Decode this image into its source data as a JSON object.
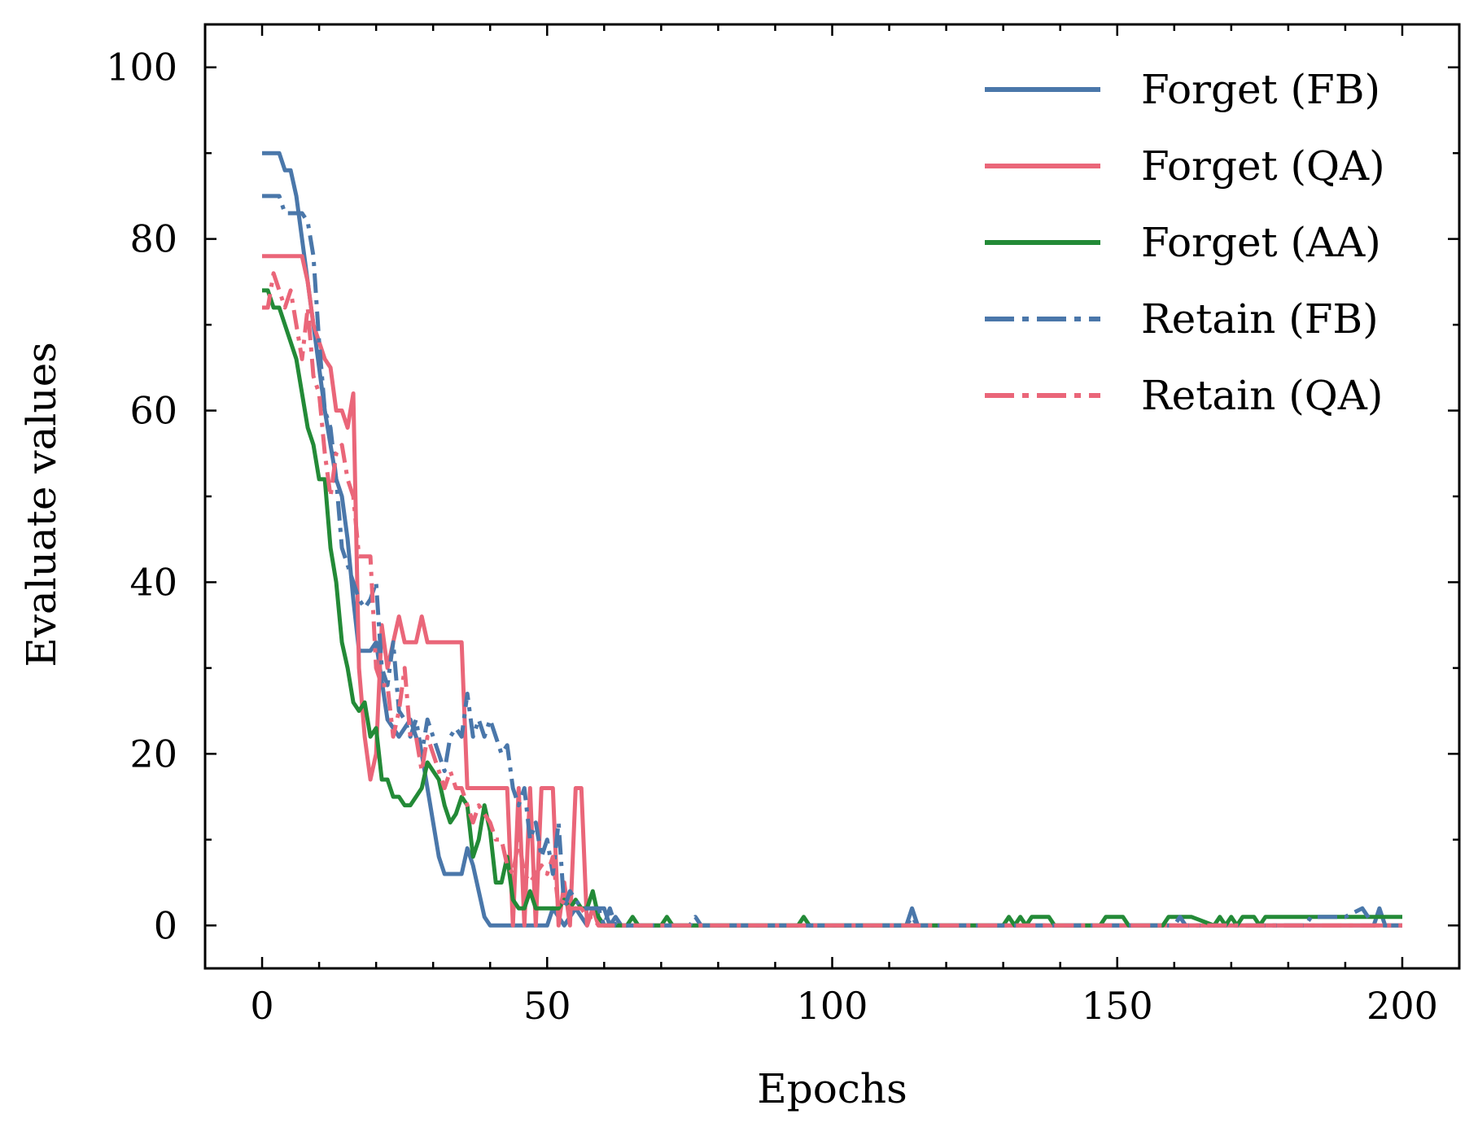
{
  "chart_data": {
    "type": "line",
    "title": "",
    "xlabel": "Epochs",
    "ylabel": "Evaluate values",
    "xlim": [
      -10,
      210
    ],
    "ylim": [
      -5,
      105
    ],
    "xticks": [
      0,
      50,
      100,
      150,
      200
    ],
    "yticks": [
      0,
      20,
      40,
      60,
      80,
      100
    ],
    "xtick_labels": [
      "0",
      "50",
      "100",
      "150",
      "200"
    ],
    "ytick_labels": [
      "0",
      "20",
      "40",
      "60",
      "80",
      "100"
    ],
    "x_minor_step": 10,
    "y_minor_step": 10,
    "grid": false,
    "legend_position": "top-right",
    "series": [
      {
        "name": "Forget (FB)",
        "color": "#4a77aa",
        "dash": "solid",
        "x": [
          0,
          1,
          2,
          3,
          4,
          5,
          6,
          7,
          8,
          9,
          10,
          11,
          12,
          13,
          14,
          15,
          16,
          17,
          18,
          19,
          20,
          22,
          24,
          26,
          28,
          30,
          31,
          32,
          33,
          34,
          35,
          36,
          37,
          38,
          39,
          40,
          50,
          51,
          52,
          53,
          54,
          55,
          56,
          57,
          58,
          59,
          60,
          61,
          62,
          63,
          80,
          113,
          114,
          115,
          180,
          190,
          195,
          196,
          197,
          200
        ],
        "y": [
          90,
          90,
          90,
          90,
          88,
          88,
          85,
          80,
          75,
          70,
          65,
          60,
          56,
          52,
          50,
          45,
          38,
          32,
          32,
          32,
          33,
          24,
          22,
          24,
          20,
          12,
          8,
          6,
          6,
          6,
          6,
          9,
          7,
          4,
          1,
          0,
          0,
          2,
          1,
          0,
          1,
          2,
          1,
          0,
          2,
          2,
          2,
          0,
          1,
          0,
          0,
          0,
          2,
          0,
          0,
          0,
          0,
          2,
          0,
          0
        ]
      },
      {
        "name": "Forget (QA)",
        "color": "#ea6679",
        "dash": "solid",
        "x": [
          0,
          7,
          8,
          9,
          10,
          11,
          12,
          13,
          14,
          15,
          16,
          17,
          18,
          19,
          20,
          21,
          22,
          23,
          24,
          25,
          26,
          27,
          28,
          29,
          30,
          34,
          35,
          36,
          37,
          38,
          40,
          41,
          42,
          43,
          44,
          45,
          46,
          47,
          48,
          49,
          50,
          51,
          52,
          53,
          54,
          55,
          56,
          57,
          58,
          59,
          60,
          200
        ],
        "y": [
          78,
          78,
          75,
          70,
          68,
          66,
          65,
          60,
          60,
          58,
          62,
          30,
          22,
          17,
          20,
          35,
          30,
          33,
          36,
          33,
          33,
          33,
          36,
          33,
          33,
          33,
          33,
          16,
          16,
          16,
          16,
          16,
          16,
          16,
          0,
          16,
          0,
          16,
          0,
          16,
          16,
          16,
          0,
          5,
          0,
          16,
          16,
          0,
          2,
          0,
          0,
          0
        ]
      },
      {
        "name": "Forget (AA)",
        "color": "#238a37",
        "dash": "solid",
        "x": [
          0,
          1,
          2,
          3,
          4,
          5,
          6,
          7,
          8,
          9,
          10,
          11,
          12,
          13,
          14,
          15,
          16,
          17,
          18,
          19,
          20,
          21,
          22,
          23,
          24,
          25,
          26,
          27,
          28,
          29,
          30,
          31,
          32,
          33,
          34,
          35,
          36,
          37,
          38,
          39,
          40,
          41,
          42,
          43,
          44,
          45,
          46,
          47,
          48,
          49,
          50,
          51,
          52,
          53,
          54,
          55,
          56,
          57,
          58,
          59,
          60,
          62,
          64,
          65,
          66,
          70,
          71,
          72,
          94,
          95,
          96,
          130,
          131,
          132,
          133,
          134,
          135,
          136,
          137,
          138,
          139,
          147,
          148,
          149,
          150,
          151,
          152,
          158,
          159,
          160,
          161,
          162,
          163,
          167,
          168,
          169,
          170,
          171,
          172,
          173,
          174,
          175,
          176,
          184,
          185,
          186,
          187,
          188,
          189,
          190,
          191,
          200
        ],
        "y": [
          74,
          74,
          72,
          72,
          70,
          68,
          66,
          62,
          58,
          56,
          52,
          52,
          44,
          40,
          33,
          30,
          26,
          25,
          26,
          22,
          23,
          17,
          17,
          15,
          15,
          14,
          14,
          15,
          16,
          19,
          18,
          17,
          14,
          12,
          13,
          15,
          14,
          8,
          10,
          14,
          11,
          5,
          5,
          8,
          3,
          2,
          2,
          4,
          2,
          2,
          2,
          2,
          2,
          3,
          2,
          3,
          2,
          2,
          4,
          1,
          0,
          0,
          0,
          1,
          0,
          0,
          1,
          0,
          0,
          1,
          0,
          0,
          1,
          0,
          1,
          0,
          1,
          1,
          1,
          1,
          0,
          0,
          1,
          1,
          1,
          1,
          0,
          0,
          1,
          1,
          1,
          1,
          1,
          0,
          1,
          0,
          1,
          0,
          1,
          1,
          1,
          0,
          1,
          1,
          1,
          1,
          1,
          1,
          1,
          1,
          1,
          1
        ]
      },
      {
        "name": "Retain (FB)",
        "color": "#4a77aa",
        "dash": "dashdot",
        "x": [
          0,
          1,
          2,
          3,
          4,
          5,
          6,
          7,
          8,
          9,
          10,
          11,
          12,
          13,
          14,
          15,
          16,
          17,
          18,
          19,
          20,
          21,
          22,
          23,
          24,
          25,
          26,
          27,
          28,
          29,
          30,
          31,
          32,
          33,
          34,
          35,
          36,
          37,
          38,
          39,
          40,
          41,
          42,
          43,
          44,
          45,
          46,
          47,
          48,
          49,
          50,
          51,
          52,
          53,
          54,
          55,
          56,
          57,
          58,
          59,
          60,
          61,
          62,
          75,
          76,
          77,
          78,
          113,
          114,
          115,
          160,
          161,
          162,
          183,
          184,
          186,
          190,
          193,
          195,
          200
        ],
        "y": [
          85,
          85,
          85,
          85,
          83,
          83,
          83,
          83,
          82,
          78,
          68,
          60,
          58,
          52,
          44,
          42,
          40,
          38,
          37,
          38,
          40,
          30,
          28,
          33,
          25,
          24,
          22,
          24,
          20,
          24,
          22,
          20,
          18,
          22,
          23,
          22,
          27,
          22,
          24,
          22,
          24,
          22,
          20,
          21,
          16,
          14,
          16,
          10,
          12,
          8,
          10,
          6,
          12,
          2,
          4,
          3,
          2,
          2,
          2,
          2,
          0,
          2,
          0,
          0,
          1,
          0,
          0,
          0,
          1,
          0,
          0,
          1,
          0,
          0,
          1,
          1,
          1,
          2,
          0,
          0
        ]
      },
      {
        "name": "Retain (QA)",
        "color": "#ea6679",
        "dash": "dashdot",
        "x": [
          0,
          1,
          2,
          3,
          4,
          5,
          6,
          7,
          8,
          9,
          10,
          11,
          12,
          13,
          14,
          15,
          16,
          17,
          18,
          19,
          20,
          21,
          22,
          23,
          24,
          25,
          26,
          27,
          28,
          29,
          30,
          31,
          32,
          33,
          34,
          35,
          36,
          37,
          38,
          39,
          40,
          41,
          42,
          43,
          44,
          45,
          46,
          47,
          48,
          49,
          50,
          51,
          52,
          53,
          54,
          55,
          56,
          57,
          58,
          59,
          60,
          200
        ],
        "y": [
          72,
          72,
          76,
          74,
          72,
          74,
          70,
          66,
          72,
          64,
          62,
          55,
          50,
          55,
          56,
          52,
          50,
          43,
          43,
          43,
          30,
          28,
          28,
          22,
          25,
          30,
          22,
          22,
          18,
          22,
          20,
          18,
          16,
          18,
          16,
          16,
          14,
          12,
          14,
          13,
          12,
          10,
          10,
          7,
          6,
          10,
          6,
          5,
          6,
          7,
          6,
          8,
          2,
          3,
          2,
          2,
          2,
          1,
          1,
          0,
          0,
          0
        ]
      }
    ]
  }
}
